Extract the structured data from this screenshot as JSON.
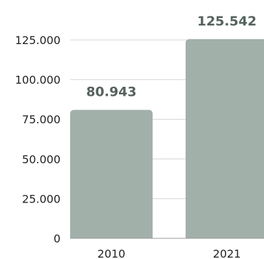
{
  "chart_data": {
    "type": "bar",
    "categories": [
      "2010",
      "2021"
    ],
    "values": [
      80943,
      125542
    ],
    "data_labels": [
      "80.943",
      "125.542"
    ],
    "ylim": [
      0,
      125000
    ],
    "yticks": [
      0,
      25000,
      50000,
      75000,
      100000,
      125000
    ],
    "ytick_labels": [
      "0",
      "25.000",
      "50.000",
      "75.000",
      "100.000",
      "125.000"
    ],
    "grid": true,
    "legend": "none",
    "title": "",
    "xlabel": "",
    "ylabel": "",
    "colors": {
      "bar": "#a2b0aa",
      "data_label": "#55625e",
      "grid": "#d4d4d4",
      "axis": "#9a9a9a"
    }
  }
}
